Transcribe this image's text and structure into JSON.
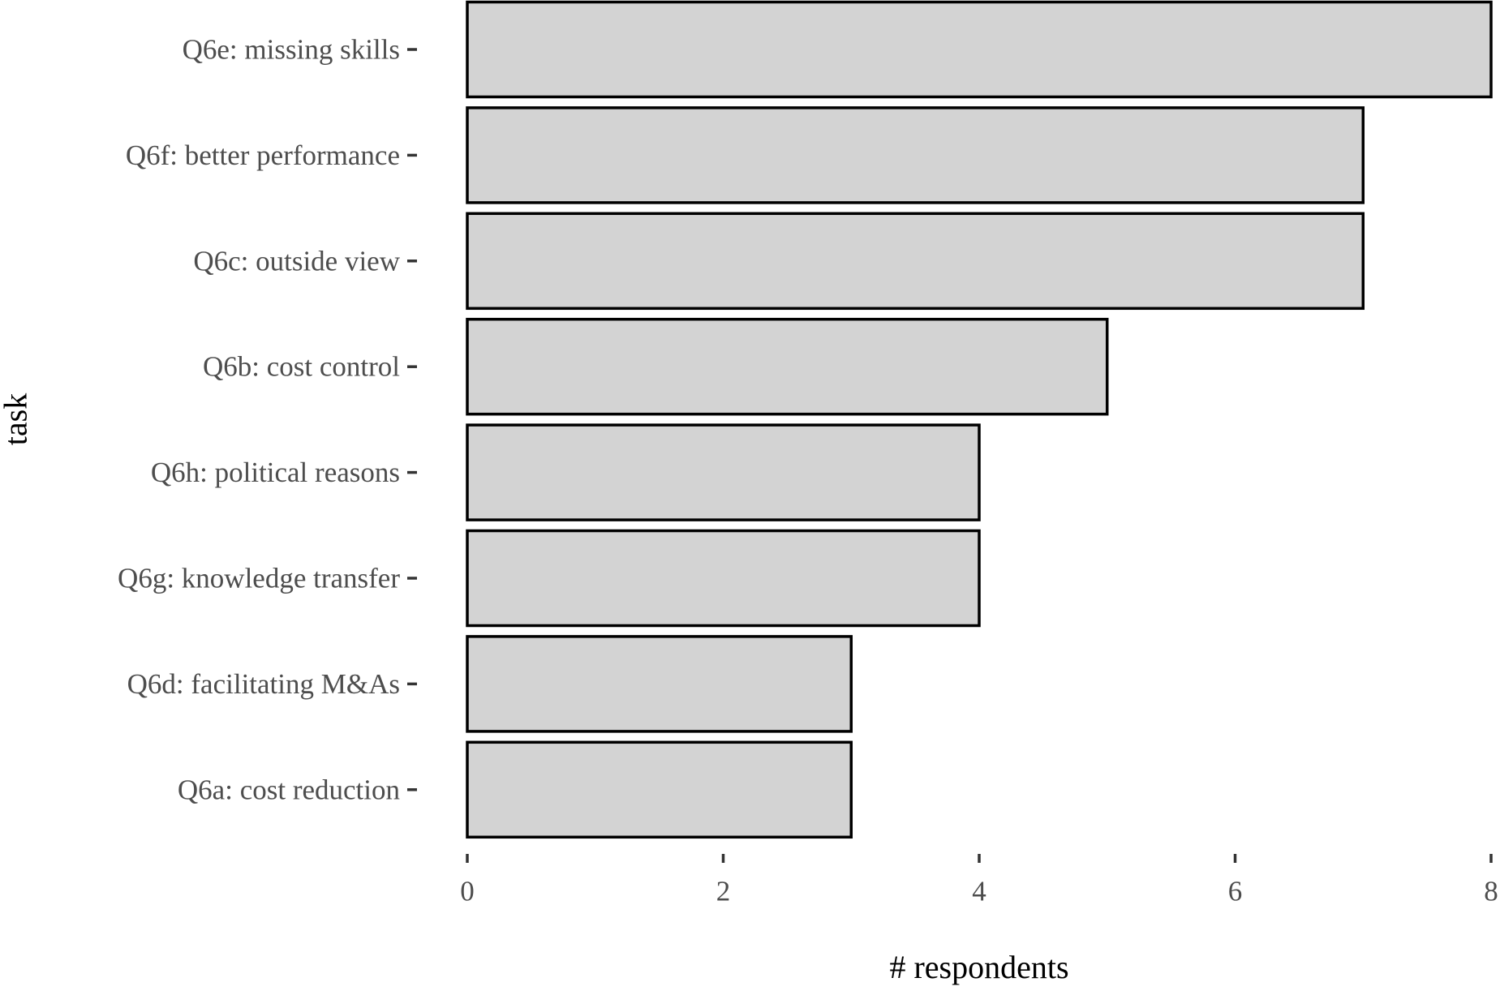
{
  "chart_data": {
    "type": "bar",
    "orientation": "horizontal",
    "categories": [
      "Q6e: missing skills",
      "Q6f: better performance",
      "Q6c: outside view",
      "Q6b: cost control",
      "Q6h: political reasons",
      "Q6g: knowledge transfer",
      "Q6d: facilitating M&As",
      "Q6a: cost reduction"
    ],
    "values": [
      8,
      7,
      7,
      5,
      4,
      4,
      3,
      3
    ],
    "xlabel": "# respondents",
    "ylabel": "task",
    "xlim": [
      0,
      8
    ],
    "xticks": [
      "0",
      "2",
      "4",
      "6",
      "8"
    ],
    "grid": false,
    "colors": {
      "bar_fill": "#d3d3d3",
      "bar_stroke": "#000000",
      "label_text": "#4d4d4d",
      "tick_mark": "#333333"
    }
  }
}
